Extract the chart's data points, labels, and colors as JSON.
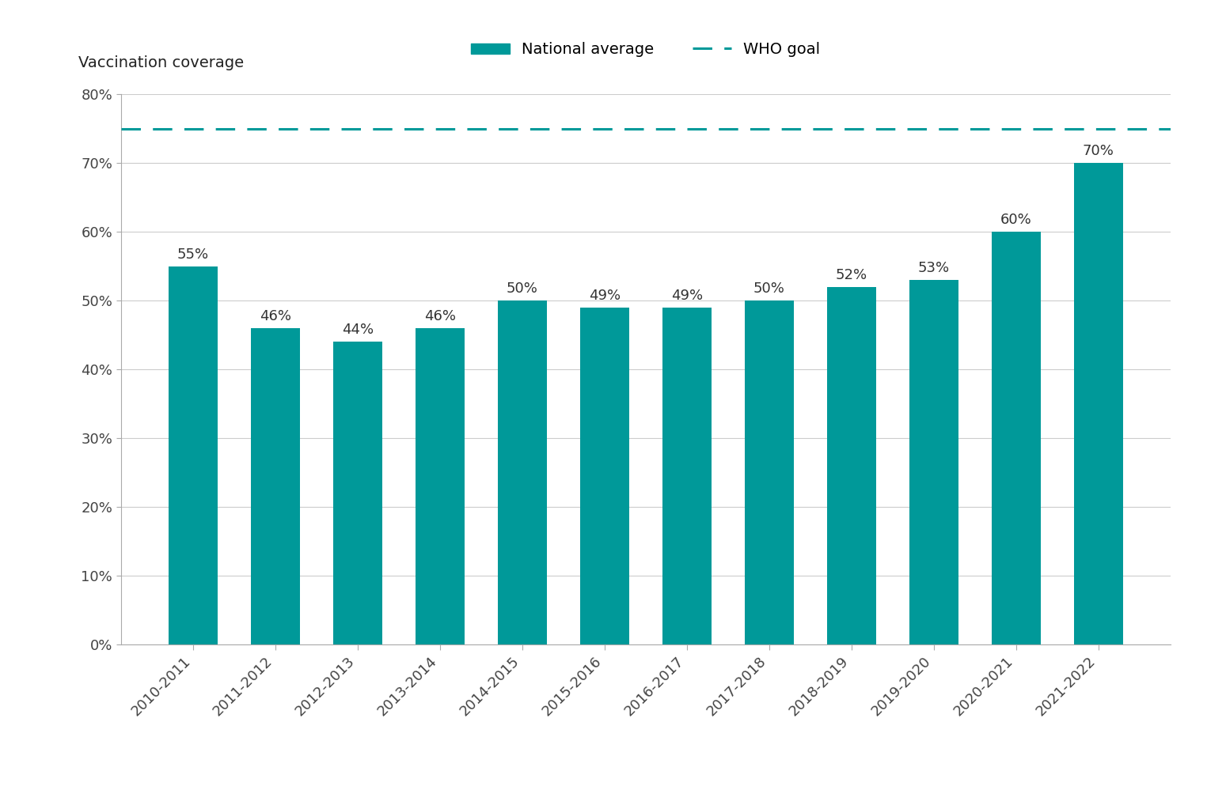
{
  "categories": [
    "2010-2011",
    "2011-2012",
    "2012-2013",
    "2013-2014",
    "2014-2015",
    "2015-2016",
    "2016-2017",
    "2017-2018",
    "2018-2019",
    "2019-2020",
    "2020-2021",
    "2021-2022"
  ],
  "values": [
    55,
    46,
    44,
    46,
    50,
    49,
    49,
    50,
    52,
    53,
    60,
    70
  ],
  "bar_color": "#009999",
  "who_goal": 75,
  "who_goal_color": "#009999",
  "ylabel": "Vaccination coverage",
  "ylim": [
    0,
    80
  ],
  "yticks": [
    0,
    10,
    20,
    30,
    40,
    50,
    60,
    70,
    80
  ],
  "legend_national": "National average",
  "legend_who": "WHO goal",
  "background_color": "#ffffff",
  "grid_color": "#cccccc",
  "label_fontsize": 14,
  "tick_fontsize": 13,
  "ylabel_fontsize": 14,
  "annotation_fontsize": 13
}
